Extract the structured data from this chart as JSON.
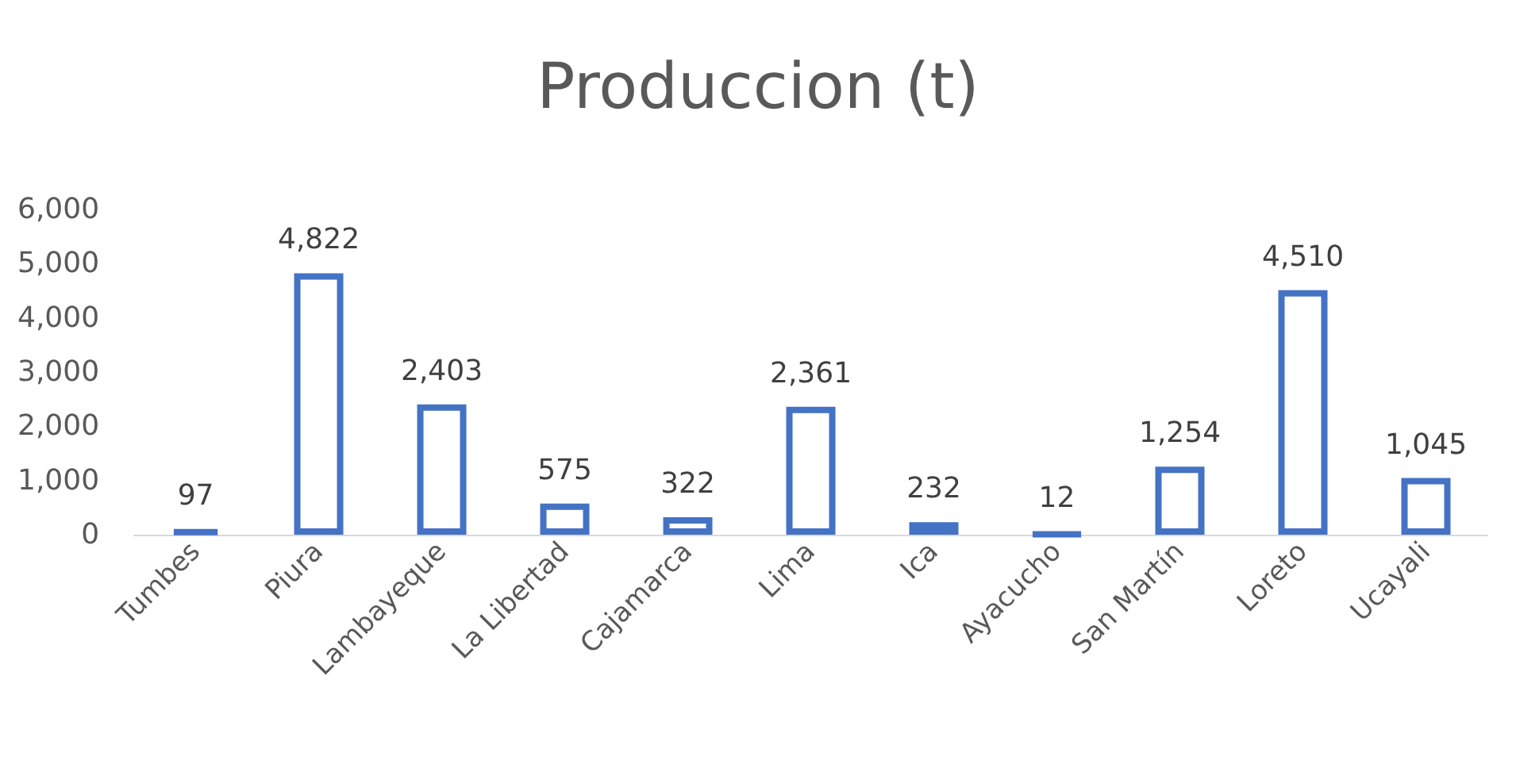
{
  "chart_data": {
    "type": "bar",
    "title": "Produccion (t)",
    "categories": [
      "Tumbes",
      "Piura",
      "Lambayeque",
      "La Libertad",
      "Cajamarca",
      "Lima",
      "Ica",
      "Ayacucho",
      "San Martín",
      "Loreto",
      "Ucayali"
    ],
    "values": [
      97,
      4822,
      2403,
      575,
      322,
      2361,
      232,
      12,
      1254,
      4510,
      1045
    ],
    "value_labels": [
      "97",
      "4,822",
      "2,403",
      "575",
      "322",
      "2,361",
      "232",
      "12",
      "1,254",
      "4,510",
      "1,045"
    ],
    "color": "#4472c4",
    "ylim": [
      0,
      6000
    ],
    "yticks": [
      {
        "value": 0,
        "label": "0"
      },
      {
        "value": 1000,
        "label": "1,000"
      },
      {
        "value": 2000,
        "label": "2,000"
      },
      {
        "value": 3000,
        "label": "3,000"
      },
      {
        "value": 4000,
        "label": "4,000"
      },
      {
        "value": 5000,
        "label": "5,000"
      },
      {
        "value": 6000,
        "label": "6,000"
      }
    ],
    "grid": false
  }
}
